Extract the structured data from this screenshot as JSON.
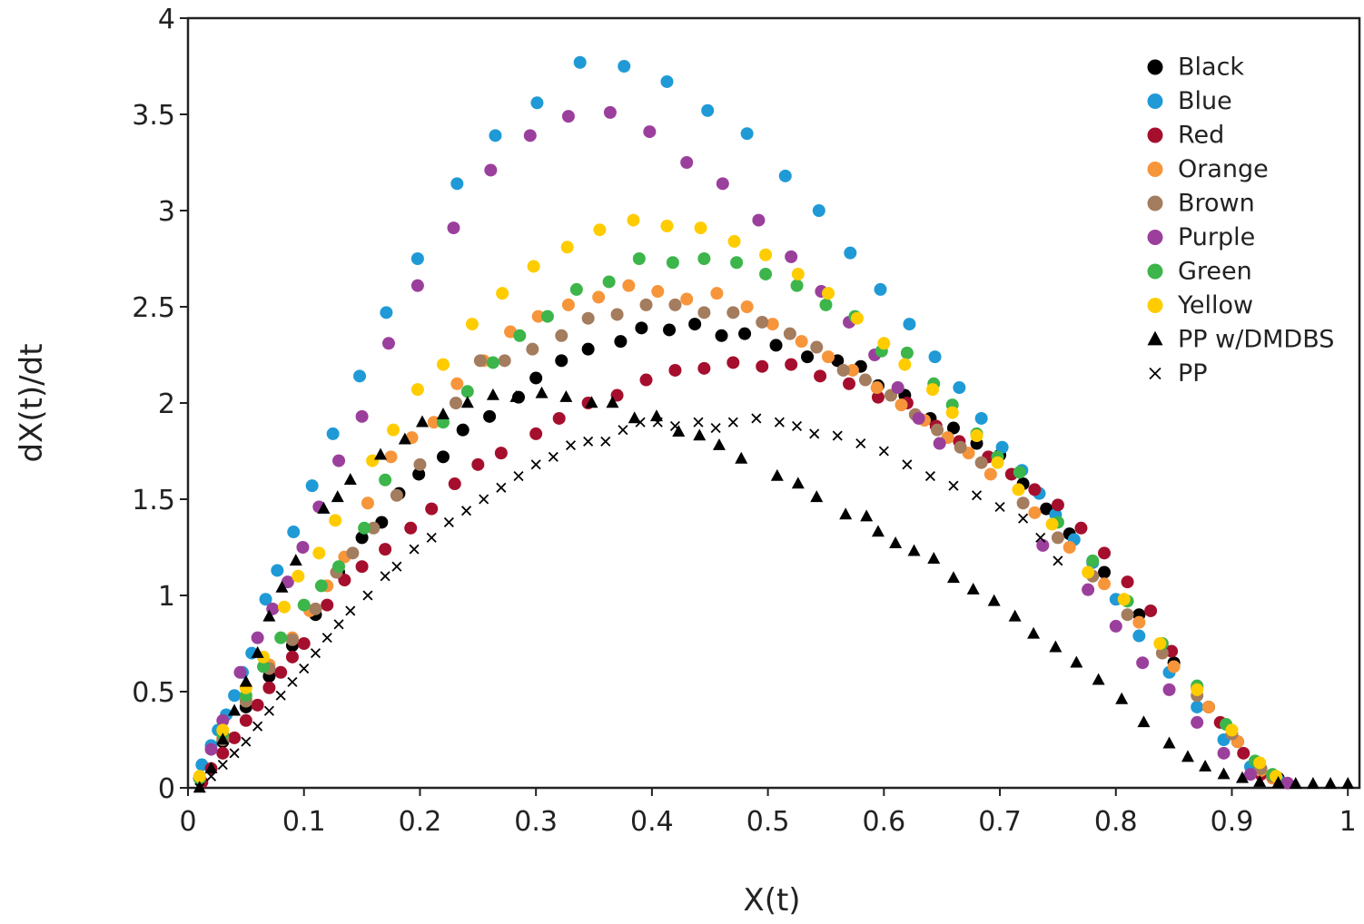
{
  "chart_data": {
    "type": "scatter",
    "x_label": "X(t)",
    "y_label": "dX(t)/dt",
    "xlim": [
      0,
      1.01
    ],
    "ylim": [
      0,
      4
    ],
    "xticks": [
      0,
      0.1,
      0.2,
      0.3,
      0.4,
      0.5,
      0.6,
      0.7,
      0.8,
      0.9,
      1
    ],
    "yticks": [
      0,
      0.5,
      1,
      1.5,
      2,
      2.5,
      3,
      3.5,
      4
    ],
    "grid": false,
    "legend": "upper right",
    "series": [
      {
        "name": "Black",
        "color": "#000000",
        "marker": "circle",
        "x": [
          0.01,
          0.03,
          0.05,
          0.07,
          0.09,
          0.11,
          0.13,
          0.15,
          0.167,
          0.182,
          0.199,
          0.22,
          0.237,
          0.26,
          0.285,
          0.3,
          0.322,
          0.345,
          0.373,
          0.391,
          0.415,
          0.437,
          0.46,
          0.48,
          0.507,
          0.534,
          0.56,
          0.58,
          0.595,
          0.618,
          0.64,
          0.66,
          0.68,
          0.7,
          0.72,
          0.74,
          0.76,
          0.79,
          0.82,
          0.85,
          0.88,
          0.905,
          0.925,
          0.94
        ],
        "values": [
          0.05,
          0.24,
          0.42,
          0.58,
          0.74,
          0.9,
          1.12,
          1.3,
          1.38,
          1.53,
          1.63,
          1.72,
          1.86,
          1.93,
          2.03,
          2.13,
          2.22,
          2.28,
          2.32,
          2.39,
          2.38,
          2.41,
          2.35,
          2.36,
          2.3,
          2.24,
          2.22,
          2.19,
          2.09,
          2.04,
          1.92,
          1.87,
          1.79,
          1.73,
          1.58,
          1.45,
          1.32,
          1.12,
          0.9,
          0.65,
          0.42,
          0.24,
          0.1,
          0.05
        ]
      },
      {
        "name": "Blue",
        "color": "#1f9ad6",
        "marker": "circle",
        "x": [
          0.012,
          0.02,
          0.026,
          0.033,
          0.04,
          0.047,
          0.055,
          0.067,
          0.077,
          0.091,
          0.107,
          0.125,
          0.148,
          0.171,
          0.198,
          0.232,
          0.265,
          0.301,
          0.338,
          0.376,
          0.413,
          0.448,
          0.482,
          0.515,
          0.544,
          0.571,
          0.597,
          0.622,
          0.644,
          0.665,
          0.684,
          0.702,
          0.719,
          0.734,
          0.748,
          0.764,
          0.78,
          0.8,
          0.82,
          0.846,
          0.87,
          0.893,
          0.916,
          0.94
        ],
        "values": [
          0.12,
          0.22,
          0.3,
          0.38,
          0.48,
          0.6,
          0.7,
          0.98,
          1.13,
          1.33,
          1.57,
          1.84,
          2.14,
          2.47,
          2.75,
          3.14,
          3.39,
          3.56,
          3.77,
          3.75,
          3.67,
          3.52,
          3.4,
          3.18,
          3.0,
          2.78,
          2.59,
          2.41,
          2.24,
          2.08,
          1.92,
          1.77,
          1.65,
          1.53,
          1.42,
          1.29,
          1.17,
          0.98,
          0.79,
          0.6,
          0.42,
          0.25,
          0.11,
          0.04
        ]
      },
      {
        "name": "Red",
        "color": "#a50f2d",
        "marker": "circle",
        "x": [
          0.012,
          0.02,
          0.03,
          0.04,
          0.05,
          0.06,
          0.07,
          0.08,
          0.09,
          0.1,
          0.12,
          0.135,
          0.15,
          0.17,
          0.192,
          0.21,
          0.23,
          0.25,
          0.27,
          0.3,
          0.32,
          0.345,
          0.37,
          0.395,
          0.42,
          0.445,
          0.47,
          0.495,
          0.52,
          0.545,
          0.57,
          0.595,
          0.62,
          0.645,
          0.665,
          0.69,
          0.71,
          0.73,
          0.75,
          0.77,
          0.79,
          0.81,
          0.83,
          0.848,
          0.87,
          0.89,
          0.91,
          0.925
        ],
        "values": [
          0.03,
          0.1,
          0.18,
          0.26,
          0.35,
          0.43,
          0.52,
          0.6,
          0.68,
          0.75,
          0.95,
          1.08,
          1.15,
          1.24,
          1.35,
          1.45,
          1.58,
          1.68,
          1.74,
          1.84,
          1.92,
          2.0,
          2.04,
          2.12,
          2.17,
          2.18,
          2.21,
          2.19,
          2.2,
          2.14,
          2.1,
          2.03,
          2.0,
          1.88,
          1.8,
          1.72,
          1.63,
          1.55,
          1.47,
          1.35,
          1.22,
          1.07,
          0.92,
          0.71,
          0.52,
          0.34,
          0.18,
          0.07
        ]
      },
      {
        "name": "Orange",
        "color": "#f7953b",
        "marker": "circle",
        "x": [
          0.01,
          0.03,
          0.05,
          0.07,
          0.09,
          0.105,
          0.12,
          0.135,
          0.155,
          0.175,
          0.193,
          0.212,
          0.232,
          0.255,
          0.278,
          0.302,
          0.328,
          0.354,
          0.38,
          0.405,
          0.43,
          0.456,
          0.482,
          0.504,
          0.529,
          0.552,
          0.573,
          0.594,
          0.615,
          0.635,
          0.655,
          0.673,
          0.692,
          0.73,
          0.76,
          0.79,
          0.82,
          0.85,
          0.88,
          0.905,
          0.925,
          0.935
        ],
        "values": [
          0.05,
          0.26,
          0.46,
          0.64,
          0.78,
          0.92,
          1.05,
          1.2,
          1.48,
          1.72,
          1.82,
          1.9,
          2.1,
          2.22,
          2.37,
          2.45,
          2.51,
          2.55,
          2.61,
          2.58,
          2.54,
          2.57,
          2.5,
          2.41,
          2.32,
          2.24,
          2.17,
          2.08,
          1.99,
          1.91,
          1.82,
          1.74,
          1.63,
          1.43,
          1.25,
          1.06,
          0.86,
          0.63,
          0.42,
          0.24,
          0.09,
          0.05
        ]
      },
      {
        "name": "Brown",
        "color": "#a47c5e",
        "marker": "circle",
        "x": [
          0.01,
          0.03,
          0.05,
          0.07,
          0.09,
          0.11,
          0.128,
          0.142,
          0.16,
          0.18,
          0.2,
          0.231,
          0.252,
          0.273,
          0.297,
          0.322,
          0.345,
          0.37,
          0.395,
          0.42,
          0.445,
          0.47,
          0.495,
          0.519,
          0.542,
          0.565,
          0.584,
          0.606,
          0.627,
          0.646,
          0.666,
          0.684,
          0.72,
          0.75,
          0.78,
          0.81,
          0.84,
          0.87,
          0.9,
          0.925,
          0.935
        ],
        "values": [
          0.05,
          0.25,
          0.45,
          0.62,
          0.77,
          0.93,
          1.12,
          1.22,
          1.35,
          1.52,
          1.68,
          2.0,
          2.22,
          2.22,
          2.28,
          2.35,
          2.44,
          2.46,
          2.51,
          2.51,
          2.47,
          2.47,
          2.42,
          2.36,
          2.29,
          2.17,
          2.12,
          2.04,
          1.94,
          1.86,
          1.77,
          1.69,
          1.48,
          1.3,
          1.1,
          0.9,
          0.7,
          0.48,
          0.28,
          0.1,
          0.06
        ]
      },
      {
        "name": "Purple",
        "color": "#9b3f9c",
        "marker": "circle",
        "x": [
          0.01,
          0.02,
          0.03,
          0.045,
          0.06,
          0.073,
          0.086,
          0.099,
          0.113,
          0.13,
          0.15,
          0.173,
          0.198,
          0.229,
          0.261,
          0.295,
          0.328,
          0.364,
          0.398,
          0.43,
          0.461,
          0.492,
          0.52,
          0.546,
          0.57,
          0.592,
          0.612,
          0.63,
          0.648,
          0.737,
          0.776,
          0.8,
          0.823,
          0.846,
          0.87,
          0.893,
          0.916,
          0.948
        ],
        "values": [
          0.05,
          0.2,
          0.35,
          0.6,
          0.78,
          0.93,
          1.07,
          1.25,
          1.46,
          1.7,
          1.93,
          2.31,
          2.61,
          2.91,
          3.21,
          3.39,
          3.49,
          3.51,
          3.41,
          3.25,
          3.14,
          2.95,
          2.76,
          2.58,
          2.42,
          2.25,
          2.08,
          1.92,
          1.79,
          1.26,
          1.03,
          0.84,
          0.65,
          0.51,
          0.34,
          0.18,
          0.07,
          0.025
        ]
      },
      {
        "name": "Green",
        "color": "#3cb54a",
        "marker": "circle",
        "x": [
          0.01,
          0.03,
          0.05,
          0.065,
          0.08,
          0.1,
          0.115,
          0.13,
          0.152,
          0.17,
          0.22,
          0.241,
          0.263,
          0.286,
          0.31,
          0.335,
          0.363,
          0.389,
          0.418,
          0.445,
          0.473,
          0.498,
          0.525,
          0.55,
          0.575,
          0.598,
          0.62,
          0.643,
          0.659,
          0.68,
          0.698,
          0.717,
          0.75,
          0.78,
          0.81,
          0.84,
          0.87,
          0.895,
          0.92,
          0.935
        ],
        "values": [
          0.05,
          0.28,
          0.48,
          0.63,
          0.78,
          0.95,
          1.05,
          1.15,
          1.35,
          1.6,
          1.9,
          2.06,
          2.21,
          2.35,
          2.45,
          2.59,
          2.63,
          2.75,
          2.73,
          2.75,
          2.73,
          2.67,
          2.61,
          2.51,
          2.45,
          2.27,
          2.26,
          2.1,
          1.99,
          1.84,
          1.72,
          1.64,
          1.38,
          1.18,
          0.97,
          0.75,
          0.53,
          0.33,
          0.14,
          0.07
        ]
      },
      {
        "name": "Yellow",
        "color": "#ffcc00",
        "marker": "circle",
        "x": [
          0.01,
          0.03,
          0.05,
          0.065,
          0.083,
          0.095,
          0.113,
          0.127,
          0.159,
          0.177,
          0.198,
          0.22,
          0.245,
          0.271,
          0.298,
          0.327,
          0.355,
          0.384,
          0.413,
          0.442,
          0.471,
          0.498,
          0.526,
          0.552,
          0.577,
          0.6,
          0.618,
          0.642,
          0.659,
          0.68,
          0.698,
          0.716,
          0.745,
          0.776,
          0.807,
          0.838,
          0.87,
          0.9,
          0.924,
          0.938
        ],
        "values": [
          0.06,
          0.3,
          0.52,
          0.68,
          0.94,
          1.1,
          1.22,
          1.39,
          1.7,
          1.86,
          2.07,
          2.2,
          2.41,
          2.57,
          2.71,
          2.81,
          2.9,
          2.95,
          2.92,
          2.91,
          2.84,
          2.77,
          2.67,
          2.57,
          2.44,
          2.31,
          2.2,
          2.07,
          1.95,
          1.83,
          1.69,
          1.55,
          1.37,
          1.12,
          0.98,
          0.75,
          0.51,
          0.3,
          0.13,
          0.06
        ]
      },
      {
        "name": "PP w/DMDBS",
        "color": "#000000",
        "marker": "triangle",
        "x": [
          0.01,
          0.02,
          0.03,
          0.04,
          0.05,
          0.06,
          0.07,
          0.081,
          0.093,
          0.117,
          0.129,
          0.14,
          0.166,
          0.187,
          0.202,
          0.22,
          0.241,
          0.263,
          0.283,
          0.305,
          0.326,
          0.348,
          0.366,
          0.385,
          0.404,
          0.423,
          0.441,
          0.458,
          0.477,
          0.508,
          0.526,
          0.542,
          0.567,
          0.585,
          0.595,
          0.61,
          0.626,
          0.643,
          0.66,
          0.677,
          0.695,
          0.713,
          0.729,
          0.748,
          0.766,
          0.785,
          0.805,
          0.824,
          0.846,
          0.862,
          0.877,
          0.893,
          0.909,
          0.924,
          0.94,
          0.955,
          0.97,
          0.985,
          1.0
        ],
        "values": [
          0.0,
          0.1,
          0.25,
          0.4,
          0.55,
          0.7,
          0.89,
          1.04,
          1.18,
          1.45,
          1.51,
          1.6,
          1.73,
          1.81,
          1.9,
          1.94,
          2.0,
          2.04,
          2.03,
          2.05,
          2.03,
          2.0,
          2.0,
          1.92,
          1.93,
          1.85,
          1.83,
          1.78,
          1.71,
          1.62,
          1.58,
          1.51,
          1.42,
          1.41,
          1.33,
          1.27,
          1.23,
          1.19,
          1.09,
          1.03,
          0.97,
          0.89,
          0.8,
          0.73,
          0.65,
          0.56,
          0.46,
          0.34,
          0.23,
          0.16,
          0.11,
          0.07,
          0.05,
          0.03,
          0.025,
          0.02,
          0.02,
          0.02,
          0.02
        ]
      },
      {
        "name": "PP",
        "color": "#000000",
        "marker": "x",
        "x": [
          0.01,
          0.02,
          0.03,
          0.04,
          0.05,
          0.06,
          0.07,
          0.08,
          0.09,
          0.1,
          0.11,
          0.12,
          0.13,
          0.14,
          0.155,
          0.17,
          0.18,
          0.195,
          0.21,
          0.225,
          0.24,
          0.255,
          0.27,
          0.285,
          0.3,
          0.315,
          0.33,
          0.345,
          0.36,
          0.375,
          0.39,
          0.405,
          0.42,
          0.44,
          0.455,
          0.47,
          0.49,
          0.51,
          0.525,
          0.54,
          0.56,
          0.58,
          0.6,
          0.62,
          0.64,
          0.66,
          0.68,
          0.7,
          0.72,
          0.735,
          0.75
        ],
        "values": [
          0.0,
          0.06,
          0.12,
          0.18,
          0.24,
          0.32,
          0.4,
          0.48,
          0.55,
          0.62,
          0.7,
          0.78,
          0.85,
          0.92,
          1.0,
          1.1,
          1.15,
          1.24,
          1.3,
          1.38,
          1.44,
          1.5,
          1.56,
          1.62,
          1.68,
          1.72,
          1.78,
          1.8,
          1.8,
          1.86,
          1.9,
          1.9,
          1.88,
          1.9,
          1.87,
          1.9,
          1.92,
          1.9,
          1.88,
          1.84,
          1.83,
          1.79,
          1.75,
          1.68,
          1.62,
          1.57,
          1.52,
          1.46,
          1.4,
          1.3,
          1.18
        ]
      }
    ]
  }
}
